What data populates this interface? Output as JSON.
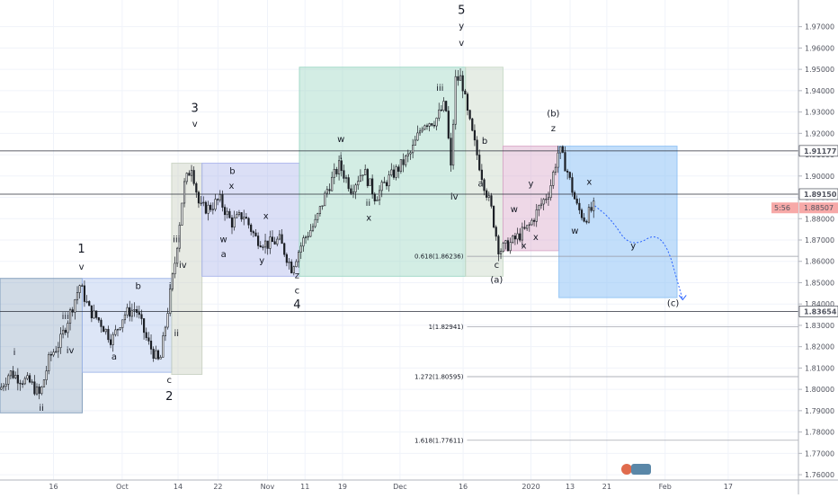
{
  "chart_data": {
    "type": "candlestick",
    "title": "",
    "xlabel": "",
    "ylabel": "",
    "ylim": [
      1.7575,
      1.9825
    ],
    "x_ticks": [
      {
        "label": "16",
        "t": 0.067
      },
      {
        "label": "Oct",
        "t": 0.153
      },
      {
        "label": "14",
        "t": 0.223
      },
      {
        "label": "22",
        "t": 0.273
      },
      {
        "label": "Nov",
        "t": 0.335
      },
      {
        "label": "11",
        "t": 0.382
      },
      {
        "label": "19",
        "t": 0.429
      },
      {
        "label": "Dec",
        "t": 0.501
      },
      {
        "label": "16",
        "t": 0.58
      },
      {
        "label": "2020",
        "t": 0.665
      },
      {
        "label": "13",
        "t": 0.714
      },
      {
        "label": "21",
        "t": 0.76
      },
      {
        "label": "Feb",
        "t": 0.833
      },
      {
        "label": "17",
        "t": 0.912
      }
    ],
    "y_ticks": [
      "1.97000",
      "1.96000",
      "1.95000",
      "1.94000",
      "1.93000",
      "1.92000",
      "1.91000",
      "1.90000",
      "1.89000",
      "1.88000",
      "1.87000",
      "1.86000",
      "1.85000",
      "1.84000",
      "1.83000",
      "1.82000",
      "1.81000",
      "1.80000",
      "1.79000",
      "1.78000",
      "1.77000",
      "1.76000"
    ],
    "key_levels": [
      {
        "value": 1.91177,
        "label": "1.91177"
      },
      {
        "value": 1.8915,
        "label": "1.89150"
      },
      {
        "value": 1.83654,
        "label": "1.83654"
      }
    ],
    "current_price": {
      "value": 1.88507,
      "label": "1.88507",
      "countdown": "5:56"
    },
    "price_path": [
      [
        0.0,
        1.8
      ],
      [
        0.012,
        1.808
      ],
      [
        0.025,
        1.805
      ],
      [
        0.038,
        1.803
      ],
      [
        0.05,
        1.797
      ],
      [
        0.062,
        1.815
      ],
      [
        0.075,
        1.822
      ],
      [
        0.088,
        1.836
      ],
      [
        0.1,
        1.849
      ],
      [
        0.112,
        1.837
      ],
      [
        0.125,
        1.832
      ],
      [
        0.14,
        1.823
      ],
      [
        0.155,
        1.835
      ],
      [
        0.17,
        1.838
      ],
      [
        0.185,
        1.822
      ],
      [
        0.2,
        1.812
      ],
      [
        0.21,
        1.837
      ],
      [
        0.22,
        1.862
      ],
      [
        0.23,
        1.895
      ],
      [
        0.24,
        1.905
      ],
      [
        0.25,
        1.885
      ],
      [
        0.262,
        1.885
      ],
      [
        0.275,
        1.889
      ],
      [
        0.29,
        1.878
      ],
      [
        0.305,
        1.882
      ],
      [
        0.32,
        1.871
      ],
      [
        0.335,
        1.868
      ],
      [
        0.35,
        1.87
      ],
      [
        0.365,
        1.857
      ],
      [
        0.38,
        1.87
      ],
      [
        0.395,
        1.878
      ],
      [
        0.41,
        1.894
      ],
      [
        0.425,
        1.905
      ],
      [
        0.44,
        1.894
      ],
      [
        0.455,
        1.903
      ],
      [
        0.47,
        1.89
      ],
      [
        0.485,
        1.898
      ],
      [
        0.5,
        1.904
      ],
      [
        0.515,
        1.911
      ],
      [
        0.53,
        1.925
      ],
      [
        0.545,
        1.926
      ],
      [
        0.558,
        1.934
      ],
      [
        0.565,
        1.902
      ],
      [
        0.57,
        1.945
      ],
      [
        0.578,
        1.946
      ],
      [
        0.585,
        1.93
      ],
      [
        0.595,
        1.914
      ],
      [
        0.605,
        1.898
      ],
      [
        0.615,
        1.885
      ],
      [
        0.625,
        1.865
      ],
      [
        0.638,
        1.868
      ],
      [
        0.65,
        1.872
      ],
      [
        0.662,
        1.876
      ],
      [
        0.675,
        1.885
      ],
      [
        0.688,
        1.893
      ],
      [
        0.7,
        1.913
      ],
      [
        0.71,
        1.903
      ],
      [
        0.722,
        1.886
      ],
      [
        0.732,
        1.88
      ],
      [
        0.745,
        1.886
      ]
    ],
    "projection_path": [
      [
        0.745,
        1.886
      ],
      [
        0.765,
        1.88
      ],
      [
        0.79,
        1.866
      ],
      [
        0.83,
        1.875
      ],
      [
        0.855,
        1.842
      ]
    ],
    "fib_levels": [
      {
        "label": "0.618(1.86236)",
        "value": 1.86236
      },
      {
        "label": "1(1.82941)",
        "value": 1.82941
      },
      {
        "label": "1.272(1.80595)",
        "value": 1.80595
      },
      {
        "label": "1.618(1.77611)",
        "value": 1.77611
      }
    ],
    "boxes": [
      {
        "t0": 0.0,
        "t1": 0.103,
        "p_low": 1.789,
        "p_high": 1.852,
        "color": "#7b98b8",
        "opacity": 0.35
      },
      {
        "t0": 0.103,
        "t1": 0.215,
        "p_low": 1.808,
        "p_high": 1.852,
        "color": "#9fb6e8",
        "opacity": 0.35
      },
      {
        "t0": 0.215,
        "t1": 0.253,
        "p_low": 1.807,
        "p_high": 1.906,
        "color": "#c9d1c2",
        "opacity": 0.45
      },
      {
        "t0": 0.253,
        "t1": 0.375,
        "p_low": 1.853,
        "p_high": 1.906,
        "color": "#a9b2ea",
        "opacity": 0.42
      },
      {
        "t0": 0.375,
        "t1": 0.583,
        "p_low": 1.853,
        "p_high": 1.951,
        "color": "#9dd6c4",
        "opacity": 0.45
      },
      {
        "t0": 0.583,
        "t1": 0.63,
        "p_low": 1.853,
        "p_high": 1.951,
        "color": "#c8d8c6",
        "opacity": 0.45
      },
      {
        "t0": 0.63,
        "t1": 0.7,
        "p_low": 1.865,
        "p_high": 1.914,
        "color": "#d9a8c9",
        "opacity": 0.45
      },
      {
        "t0": 0.7,
        "t1": 0.848,
        "p_low": 1.843,
        "p_high": 1.914,
        "color": "#90c2f5",
        "opacity": 0.55
      }
    ],
    "wave_labels": [
      {
        "text": "i",
        "t": 0.018,
        "p": 1.816
      },
      {
        "text": "ii",
        "t": 0.052,
        "p": 1.79
      },
      {
        "text": "iii",
        "t": 0.082,
        "p": 1.833
      },
      {
        "text": "iv",
        "t": 0.088,
        "p": 1.817
      },
      {
        "text": "v",
        "t": 0.102,
        "p": 1.856
      },
      {
        "text": "1",
        "t": 0.102,
        "p": 1.864,
        "big": true
      },
      {
        "text": "a",
        "t": 0.143,
        "p": 1.814
      },
      {
        "text": "b",
        "t": 0.173,
        "p": 1.847
      },
      {
        "text": "c",
        "t": 0.212,
        "p": 1.803
      },
      {
        "text": "2",
        "t": 0.212,
        "p": 1.795,
        "big": true
      },
      {
        "text": "i",
        "t": 0.213,
        "p": 1.847
      },
      {
        "text": "ii",
        "t": 0.221,
        "p": 1.825
      },
      {
        "text": "iii",
        "t": 0.221,
        "p": 1.869
      },
      {
        "text": "iv",
        "t": 0.229,
        "p": 1.857
      },
      {
        "text": "v",
        "t": 0.244,
        "p": 1.923
      },
      {
        "text": "3",
        "t": 0.244,
        "p": 1.93,
        "big": true
      },
      {
        "text": "b",
        "t": 0.291,
        "p": 1.901
      },
      {
        "text": "x",
        "t": 0.29,
        "p": 1.894
      },
      {
        "text": "w",
        "t": 0.28,
        "p": 1.869
      },
      {
        "text": "a",
        "t": 0.28,
        "p": 1.862
      },
      {
        "text": "x",
        "t": 0.333,
        "p": 1.88
      },
      {
        "text": "y",
        "t": 0.328,
        "p": 1.859
      },
      {
        "text": "z",
        "t": 0.372,
        "p": 1.852
      },
      {
        "text": "c",
        "t": 0.372,
        "p": 1.845
      },
      {
        "text": "4",
        "t": 0.372,
        "p": 1.838,
        "big": true
      },
      {
        "text": "w",
        "t": 0.427,
        "p": 1.916
      },
      {
        "text": "i",
        "t": 0.427,
        "p": 1.908
      },
      {
        "text": "ii",
        "t": 0.461,
        "p": 1.886
      },
      {
        "text": "x",
        "t": 0.462,
        "p": 1.879
      },
      {
        "text": "iii",
        "t": 0.551,
        "p": 1.94
      },
      {
        "text": "iv",
        "t": 0.569,
        "p": 1.889
      },
      {
        "text": "5",
        "t": 0.578,
        "p": 1.976,
        "big": true
      },
      {
        "text": "y",
        "t": 0.578,
        "p": 1.969
      },
      {
        "text": "v",
        "t": 0.578,
        "p": 1.961
      },
      {
        "text": "b",
        "t": 0.607,
        "p": 1.915
      },
      {
        "text": "a",
        "t": 0.602,
        "p": 1.895
      },
      {
        "text": "c",
        "t": 0.622,
        "p": 1.857
      },
      {
        "text": "(a)",
        "t": 0.622,
        "p": 1.85
      },
      {
        "text": "w",
        "t": 0.644,
        "p": 1.883
      },
      {
        "text": "x",
        "t": 0.656,
        "p": 1.866
      },
      {
        "text": "y",
        "t": 0.665,
        "p": 1.895
      },
      {
        "text": "x",
        "t": 0.671,
        "p": 1.87
      },
      {
        "text": "(b)",
        "t": 0.693,
        "p": 1.928
      },
      {
        "text": "z",
        "t": 0.693,
        "p": 1.921
      },
      {
        "text": "x",
        "t": 0.738,
        "p": 1.896
      },
      {
        "text": "w",
        "t": 0.72,
        "p": 1.873
      },
      {
        "text": "y",
        "t": 0.793,
        "p": 1.866
      },
      {
        "text": "(c)",
        "t": 0.843,
        "p": 1.839
      }
    ]
  }
}
